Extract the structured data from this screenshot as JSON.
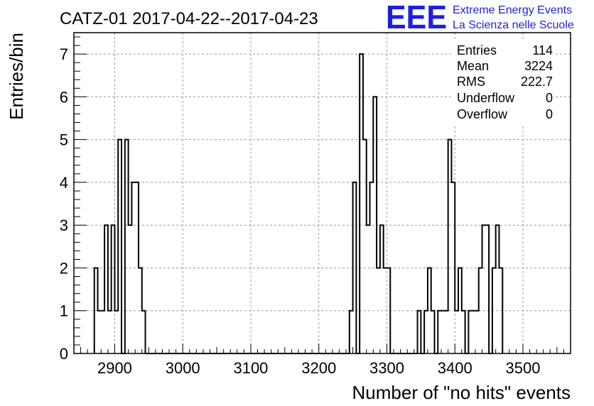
{
  "chart_data": {
    "type": "histogram",
    "title": "CATZ-01 2017-04-22--2017-04-23",
    "xlabel": "Number of \"no hits\" events",
    "ylabel": "Entries/bin",
    "xlim": [
      2840,
      3570
    ],
    "ylim": [
      0,
      7.5
    ],
    "x_ticks": [
      2900,
      3000,
      3100,
      3200,
      3300,
      3400,
      3500
    ],
    "y_ticks": [
      0,
      1,
      2,
      3,
      4,
      5,
      6,
      7
    ],
    "grid": true,
    "bin_width": 5,
    "bins_start": 2870,
    "counts": [
      2,
      1,
      1,
      3,
      1,
      3,
      1,
      5,
      0,
      5,
      3,
      4,
      4,
      2,
      1,
      0,
      0,
      0,
      0,
      0,
      0,
      0,
      0,
      0,
      0,
      0,
      0,
      0,
      0,
      0,
      0,
      0,
      0,
      0,
      0,
      0,
      0,
      0,
      0,
      0,
      0,
      0,
      0,
      0,
      0,
      0,
      0,
      0,
      0,
      0,
      0,
      0,
      0,
      0,
      0,
      0,
      0,
      0,
      0,
      0,
      0,
      0,
      0,
      0,
      0,
      0,
      0,
      0,
      0,
      0,
      0,
      0,
      0,
      0,
      0,
      1,
      4,
      0,
      7,
      5,
      3,
      4,
      6,
      2,
      3,
      2,
      2,
      0,
      0,
      0,
      0,
      0,
      0,
      0,
      0,
      1,
      0,
      1,
      2,
      1,
      0,
      1,
      1,
      1,
      5,
      4,
      1,
      2,
      1,
      0,
      1,
      1,
      1,
      2,
      3,
      3,
      0,
      2,
      3,
      2
    ],
    "stats": {
      "entries_label": "Entries",
      "entries": "114",
      "mean_label": "Mean",
      "mean": "3224",
      "rms_label": "RMS",
      "rms": "222.7",
      "underflow_label": "Underflow",
      "underflow": "0",
      "overflow_label": "Overflow",
      "overflow": "0"
    },
    "line_color": "#000000",
    "grid_color": "#9a9a9a"
  },
  "logo": {
    "mark": "EEE",
    "line1": "Extreme Energy Events",
    "line2": "La Scienza nelle Scuole",
    "color": "#1f1fe0"
  }
}
